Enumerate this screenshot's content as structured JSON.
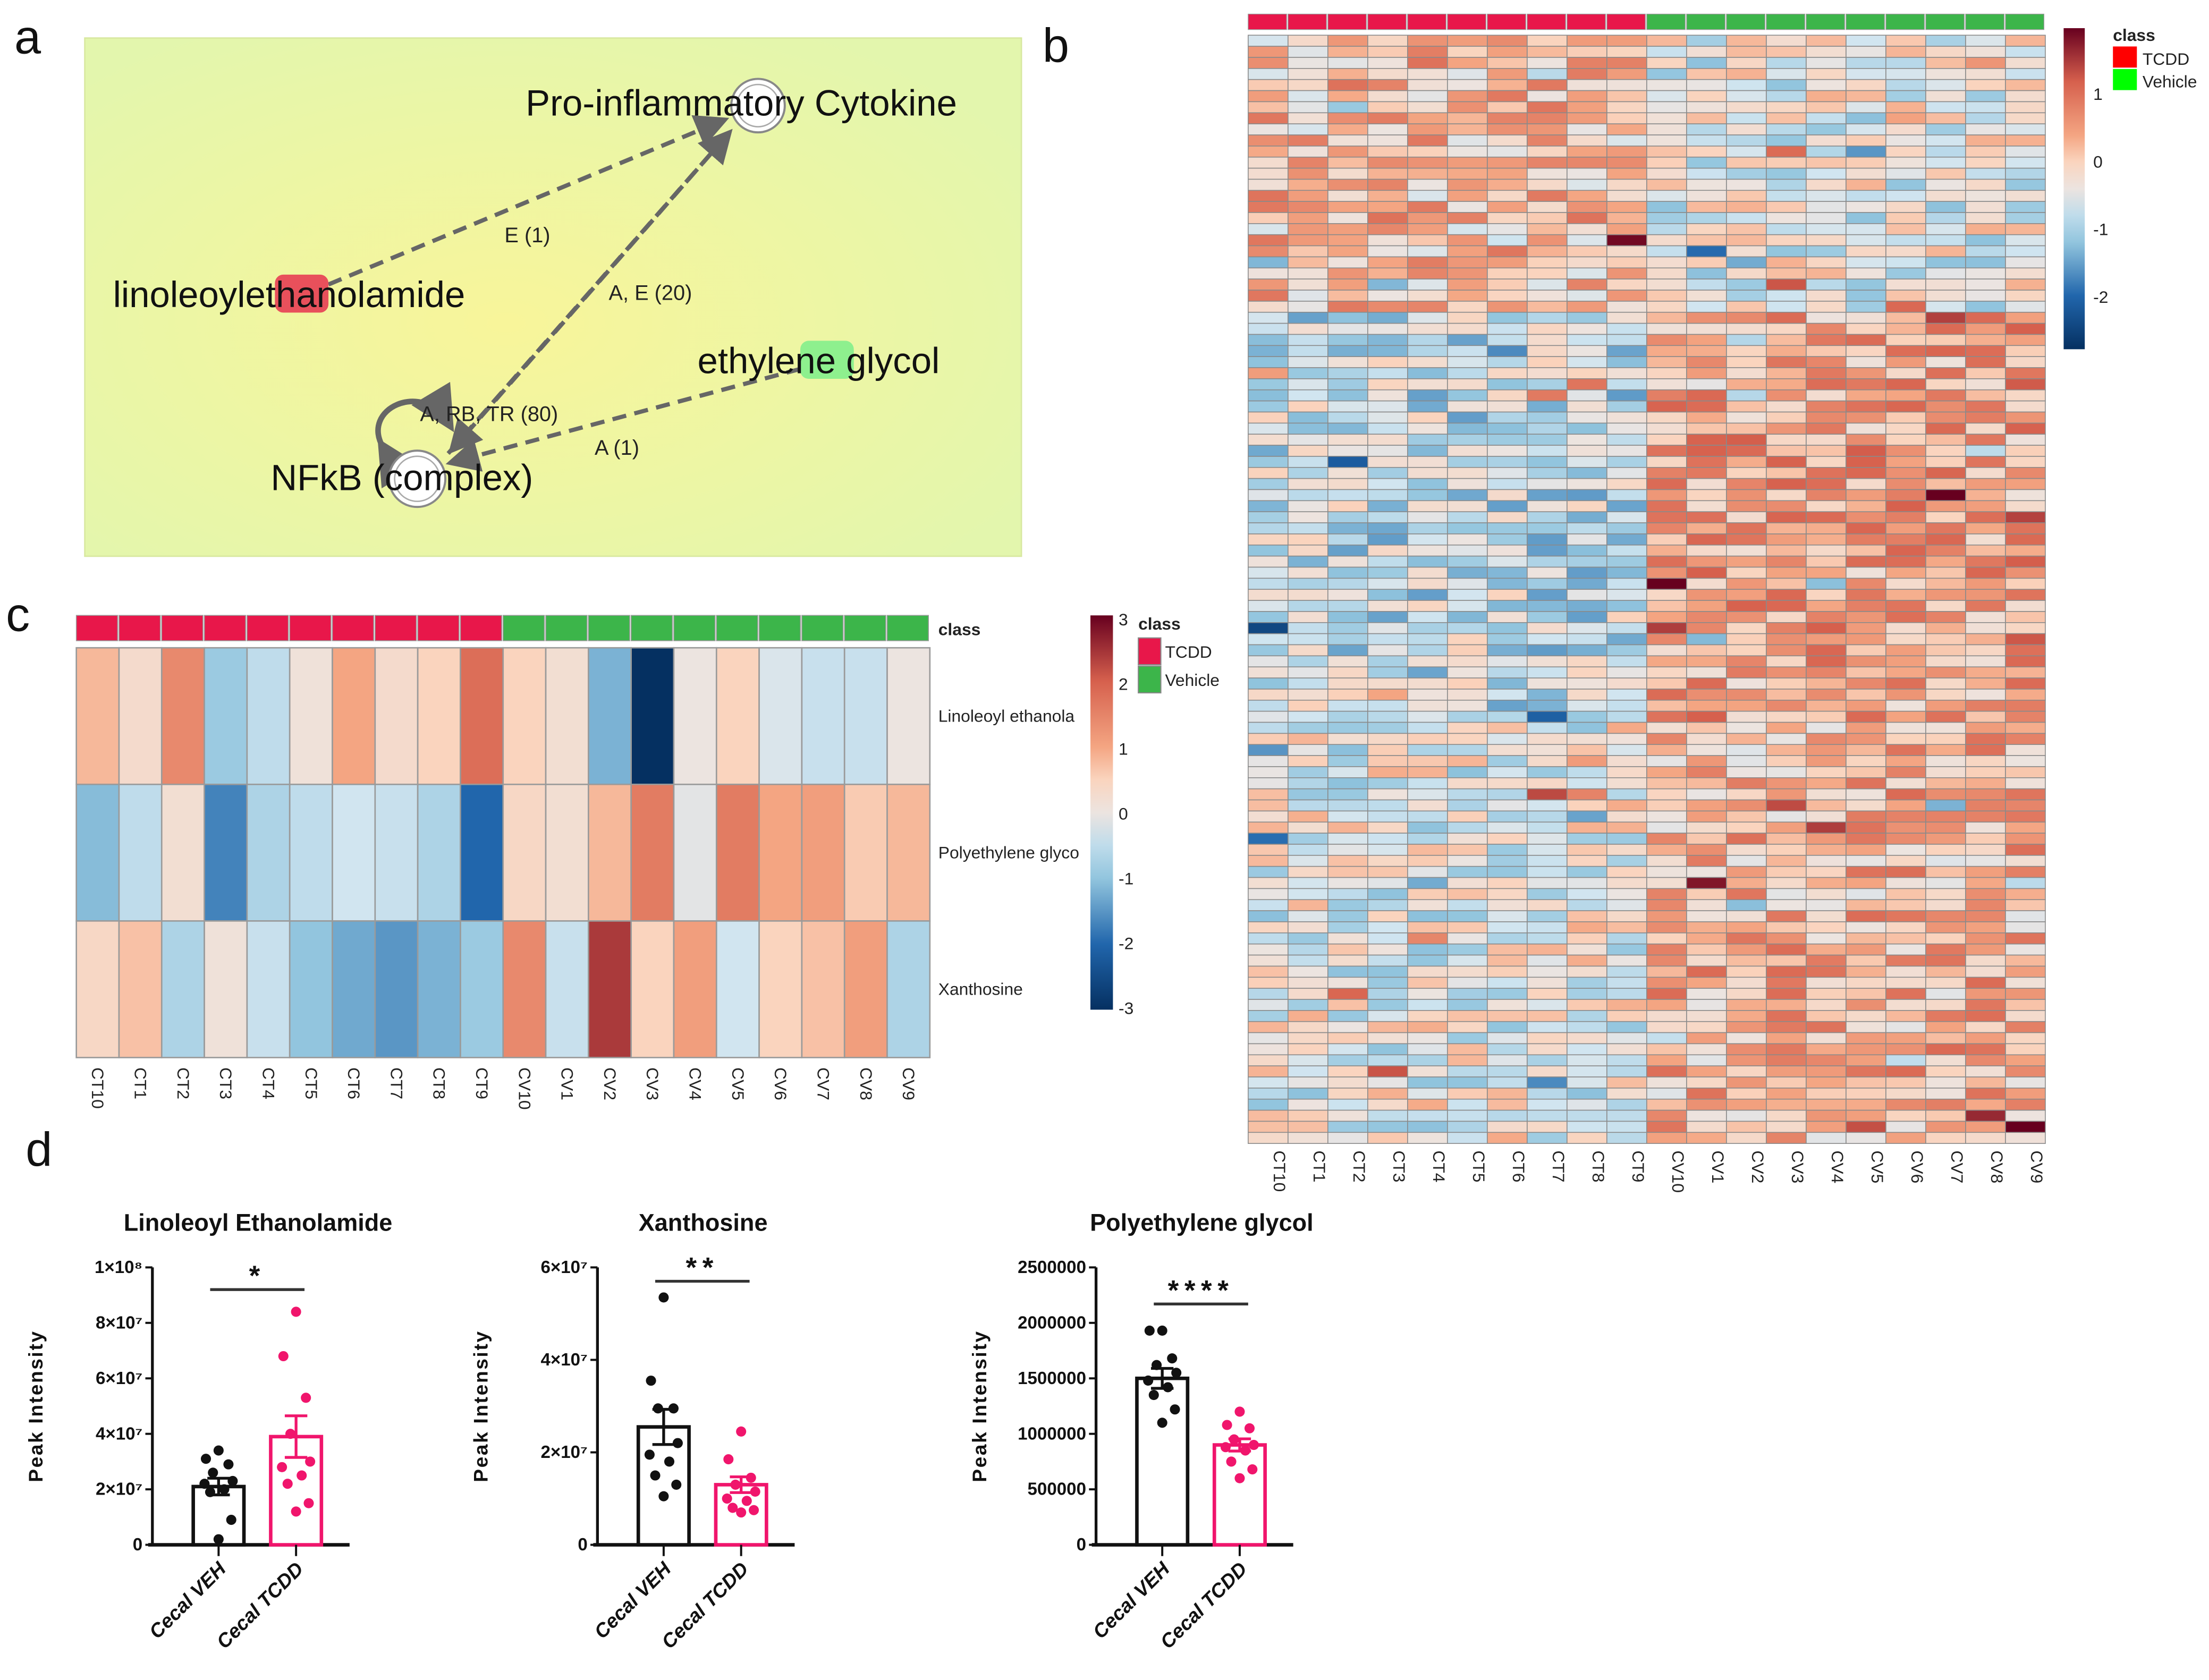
{
  "panel_labels": {
    "a": "a",
    "b": "b",
    "c": "c",
    "d": "d"
  },
  "network": {
    "nodes": [
      {
        "label": "Pro-inflammatory Cytokine",
        "shape": "circle"
      },
      {
        "label": "linoleoylethanolamide",
        "highlight": "#e8505b"
      },
      {
        "label": "ethylene glycol",
        "highlight": "#8ef08e"
      },
      {
        "label": "NFkB (complex)",
        "shape": "circle"
      }
    ],
    "edges": [
      {
        "from": "linoleoylethanolamide",
        "to": "Pro-inflammatory Cytokine",
        "label": "E (1)"
      },
      {
        "from": "NFkB (complex)",
        "to": "Pro-inflammatory Cytokine",
        "label": "A, E (20)"
      },
      {
        "from": "NFkB (complex)",
        "to": "NFkB (complex)",
        "label": "A, RB, TR (80)"
      },
      {
        "from": "ethylene glycol",
        "to": "NFkB (complex)",
        "label": "A (1)"
      }
    ],
    "background": "#eef7a8"
  },
  "chart_data": [
    {
      "id": "heatmap_b",
      "type": "heatmap",
      "columns": [
        "CT10",
        "CT1",
        "CT2",
        "CT3",
        "CT4",
        "CT5",
        "CT6",
        "CT7",
        "CT8",
        "CT9",
        "CV10",
        "CV1",
        "CV2",
        "CV3",
        "CV4",
        "CV5",
        "CV6",
        "CV7",
        "CV8",
        "CV9"
      ],
      "column_class": [
        "TCDD",
        "TCDD",
        "TCDD",
        "TCDD",
        "TCDD",
        "TCDD",
        "TCDD",
        "TCDD",
        "TCDD",
        "TCDD",
        "Vehicle",
        "Vehicle",
        "Vehicle",
        "Vehicle",
        "Vehicle",
        "Vehicle",
        "Vehicle",
        "Vehicle",
        "Vehicle",
        "Vehicle"
      ],
      "n_rows": 100,
      "row_pattern": [
        {
          "rows": 25,
          "TCDD_mean": 0.3,
          "Vehicle_mean": -0.5
        },
        {
          "rows": 37,
          "TCDD_mean": -0.9,
          "Vehicle_mean": 0.6
        },
        {
          "rows": 38,
          "TCDD_mean": -0.5,
          "Vehicle_mean": 0.4
        }
      ],
      "colorbar_ticks": [
        "1",
        "0",
        "-1",
        "-2"
      ],
      "colorbar_range": [
        -2.7,
        1.9
      ],
      "legend": {
        "title": "class",
        "items": [
          {
            "label": "TCDD",
            "color": "#ff0000"
          },
          {
            "label": "Vehicle",
            "color": "#00ff00"
          }
        ]
      }
    },
    {
      "id": "heatmap_c",
      "type": "heatmap",
      "columns": [
        "CT10",
        "CT1",
        "CT2",
        "CT3",
        "CT4",
        "CT5",
        "CT6",
        "CT7",
        "CT8",
        "CT9",
        "CV10",
        "CV1",
        "CV2",
        "CV3",
        "CV4",
        "CV5",
        "CV6",
        "CV7",
        "CV8",
        "CV9"
      ],
      "column_class": [
        "TCDD",
        "TCDD",
        "TCDD",
        "TCDD",
        "TCDD",
        "TCDD",
        "TCDD",
        "TCDD",
        "TCDD",
        "TCDD",
        "Vehicle",
        "Vehicle",
        "Vehicle",
        "Vehicle",
        "Vehicle",
        "Vehicle",
        "Vehicle",
        "Vehicle",
        "Vehicle",
        "Vehicle"
      ],
      "class_label": "class",
      "rows": [
        {
          "label": "Linoleoyl ethanola",
          "values": [
            0.8,
            0.3,
            1.4,
            -0.9,
            -0.5,
            0.1,
            1.0,
            0.3,
            0.5,
            1.8,
            0.5,
            0.2,
            -1.2,
            -3.0,
            0.0,
            0.5,
            -0.2,
            -0.4,
            -0.4,
            0.0
          ]
        },
        {
          "label": "Polyethylene glyco",
          "values": [
            -1.1,
            -0.5,
            0.2,
            -1.7,
            -0.7,
            -0.5,
            -0.3,
            -0.4,
            -0.7,
            -2.0,
            0.4,
            0.2,
            0.8,
            1.6,
            -0.1,
            1.6,
            1.0,
            1.1,
            0.6,
            0.8
          ]
        },
        {
          "label": "Xanthosine",
          "values": [
            0.4,
            0.7,
            -0.7,
            0.1,
            -0.4,
            -1.0,
            -1.3,
            -1.5,
            -1.2,
            -0.9,
            1.4,
            -0.4,
            2.4,
            0.5,
            1.1,
            -0.3,
            0.5,
            0.7,
            1.1,
            -0.7
          ]
        }
      ],
      "colorbar_ticks": [
        "3",
        "2",
        "1",
        "0",
        "-1",
        "-2",
        "-3"
      ],
      "colorbar_range": [
        -3,
        3
      ],
      "legend": {
        "title": "class",
        "items": [
          {
            "label": "TCDD",
            "color": "#e8174a"
          },
          {
            "label": "Vehicle",
            "color": "#3cb54a"
          }
        ]
      }
    },
    {
      "id": "bar_lea",
      "type": "bar",
      "title": "Linoleoyl Ethanolamide",
      "ylabel": "Peak Intensity",
      "ylim": [
        0,
        100000000
      ],
      "yticks": [
        0,
        20000000,
        40000000,
        60000000,
        80000000,
        100000000
      ],
      "ytick_labels": [
        "0",
        "2×10⁷",
        "4×10⁷",
        "6×10⁷",
        "8×10⁷",
        "1×10⁸"
      ],
      "categories": [
        "Cecal VEH",
        "Cecal TCDD"
      ],
      "colors": [
        "#111111",
        "#f0156c"
      ],
      "means": [
        21000000,
        39000000
      ],
      "sem": [
        3000000,
        7500000
      ],
      "points": [
        [
          34000000,
          31000000,
          29000000,
          26000000,
          23000000,
          22000000,
          20000000,
          19000000,
          9000000,
          2000000
        ],
        [
          84000000,
          68000000,
          53000000,
          40000000,
          30000000,
          28000000,
          25000000,
          22000000,
          15000000,
          12000000
        ]
      ],
      "significance": "*",
      "bracket_y": 92000000
    },
    {
      "id": "bar_xanthosine",
      "type": "bar",
      "title": "Xanthosine",
      "ylabel": "Peak Intensity",
      "ylim": [
        0,
        60000000
      ],
      "yticks": [
        0,
        20000000,
        40000000,
        60000000
      ],
      "ytick_labels": [
        "0",
        "2×10⁷",
        "4×10⁷",
        "6×10⁷"
      ],
      "categories": [
        "Cecal VEH",
        "Cecal TCDD"
      ],
      "colors": [
        "#111111",
        "#f0156c"
      ],
      "means": [
        25500000,
        13000000
      ],
      "sem": [
        3800000,
        1700000
      ],
      "points": [
        [
          53500000,
          35500000,
          29500000,
          29500000,
          22000000,
          19500000,
          18000000,
          15000000,
          13000000,
          10500000
        ],
        [
          24500000,
          18500000,
          14500000,
          13000000,
          11500000,
          10000000,
          9500000,
          8000000,
          7500000,
          7000000
        ]
      ],
      "significance": "**",
      "bracket_y": 57000000
    },
    {
      "id": "bar_peg",
      "type": "bar",
      "title": "Polyethylene glycol",
      "ylabel": "Peak Intensity",
      "ylim": [
        0,
        2500000
      ],
      "yticks": [
        0,
        500000,
        1000000,
        1500000,
        2000000,
        2500000
      ],
      "ytick_labels": [
        "0",
        "500000",
        "1000000",
        "1500000",
        "2000000",
        "2500000"
      ],
      "categories": [
        "Cecal VEH",
        "Cecal TCDD"
      ],
      "colors": [
        "#111111",
        "#f0156c"
      ],
      "means": [
        1500000,
        900000
      ],
      "sem": [
        90000,
        55000
      ],
      "points": [
        [
          1930000,
          1930000,
          1680000,
          1620000,
          1550000,
          1480000,
          1420000,
          1350000,
          1220000,
          1100000
        ],
        [
          1200000,
          1080000,
          1050000,
          950000,
          900000,
          880000,
          850000,
          750000,
          680000,
          600000
        ]
      ],
      "significance": "****",
      "bracket_y": 2170000
    }
  ]
}
